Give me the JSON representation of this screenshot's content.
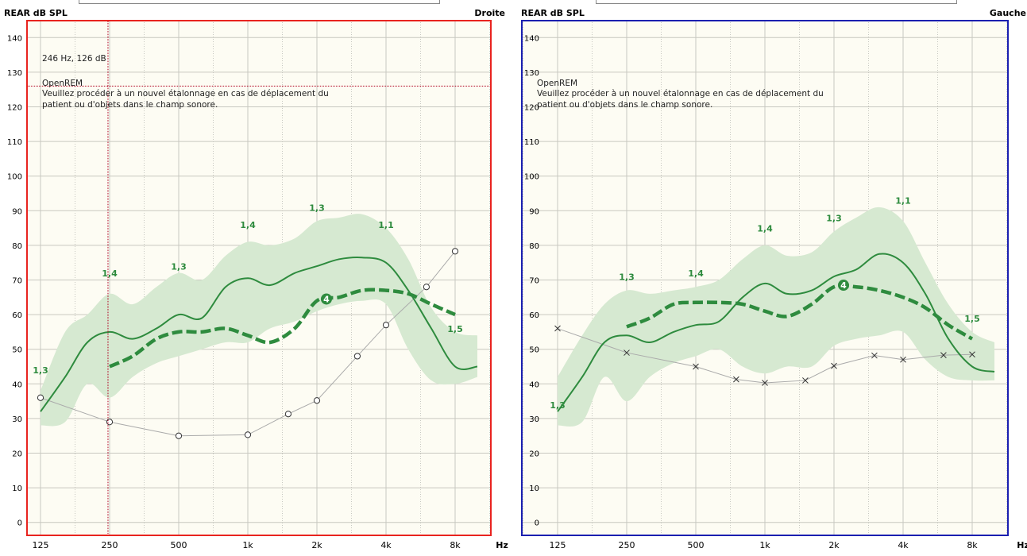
{
  "colors": {
    "right_frame": "#e8231f",
    "left_frame": "#1a1fb0",
    "plot_bg": "#fdfcf3",
    "grid": "#c8c8c0",
    "band": "#d6e9d1",
    "target": "#2e8b3e",
    "threshold": "#aaaaaa",
    "cursor": "#b00020"
  },
  "chart_data": [
    {
      "type": "line",
      "side": "Droite",
      "ylabel": "REAR dB SPL",
      "xlabel": "Hz",
      "ylim": [
        0,
        140
      ],
      "yticks": [
        0,
        10,
        20,
        30,
        40,
        50,
        60,
        70,
        80,
        90,
        100,
        110,
        120,
        130,
        140
      ],
      "xticks": [
        {
          "hz": 125,
          "label": "125"
        },
        {
          "hz": 250,
          "label": "250"
        },
        {
          "hz": 500,
          "label": "500"
        },
        {
          "hz": 1000,
          "label": "1k"
        },
        {
          "hz": 2000,
          "label": "2k"
        },
        {
          "hz": 4000,
          "label": "4k"
        },
        {
          "hz": 8000,
          "label": "8k"
        }
      ],
      "cursor_readout": "246 Hz, 126 dB",
      "cursor": {
        "hz": 246,
        "db": 126
      },
      "note_title": "OpenREM",
      "note_lines": [
        "Veuillez procéder à un nouvel étalonnage en cas de déplacement du",
        "patient ou d'objets dans le champ sonore."
      ],
      "band_upper": [
        [
          125,
          38
        ],
        [
          160,
          55
        ],
        [
          200,
          60
        ],
        [
          250,
          66
        ],
        [
          315,
          63
        ],
        [
          400,
          68
        ],
        [
          500,
          72
        ],
        [
          630,
          70
        ],
        [
          800,
          77
        ],
        [
          1000,
          81
        ],
        [
          1250,
          80
        ],
        [
          1600,
          82
        ],
        [
          2000,
          87
        ],
        [
          2500,
          88
        ],
        [
          3150,
          89
        ],
        [
          4000,
          85
        ],
        [
          5000,
          76
        ],
        [
          6300,
          62
        ],
        [
          8000,
          55
        ],
        [
          10000,
          54
        ]
      ],
      "band_lower": [
        [
          125,
          28
        ],
        [
          160,
          29
        ],
        [
          200,
          40
        ],
        [
          250,
          36
        ],
        [
          315,
          42
        ],
        [
          400,
          46
        ],
        [
          500,
          48
        ],
        [
          630,
          50
        ],
        [
          800,
          52
        ],
        [
          1000,
          52
        ],
        [
          1250,
          56
        ],
        [
          1600,
          58
        ],
        [
          2000,
          61
        ],
        [
          2500,
          63
        ],
        [
          3150,
          64
        ],
        [
          4000,
          63
        ],
        [
          5000,
          50
        ],
        [
          6300,
          41
        ],
        [
          8000,
          40
        ],
        [
          10000,
          42
        ]
      ],
      "measured": [
        [
          125,
          32
        ],
        [
          160,
          42
        ],
        [
          200,
          52
        ],
        [
          250,
          55
        ],
        [
          315,
          53
        ],
        [
          400,
          56
        ],
        [
          500,
          60
        ],
        [
          630,
          59
        ],
        [
          800,
          68
        ],
        [
          1000,
          70.5
        ],
        [
          1250,
          68.5
        ],
        [
          1600,
          72
        ],
        [
          2000,
          74
        ],
        [
          2500,
          76
        ],
        [
          3150,
          76.5
        ],
        [
          4000,
          75
        ],
        [
          5000,
          67
        ],
        [
          6300,
          56
        ],
        [
          8000,
          45
        ],
        [
          10000,
          45
        ]
      ],
      "target": [
        [
          250,
          45
        ],
        [
          315,
          48
        ],
        [
          400,
          53
        ],
        [
          500,
          55
        ],
        [
          630,
          55
        ],
        [
          800,
          56
        ],
        [
          1000,
          54
        ],
        [
          1250,
          52
        ],
        [
          1600,
          56
        ],
        [
          2000,
          64
        ],
        [
          2500,
          65
        ],
        [
          3150,
          67
        ],
        [
          4000,
          67
        ],
        [
          5000,
          66
        ],
        [
          6300,
          63
        ],
        [
          8000,
          60
        ]
      ],
      "target_marker": {
        "hz": 2200,
        "db": 64.5,
        "label": "4"
      },
      "threshold": [
        [
          125,
          36
        ],
        [
          250,
          29
        ],
        [
          500,
          25
        ],
        [
          1000,
          25.3
        ],
        [
          1500,
          31.3
        ],
        [
          2000,
          35.2
        ],
        [
          3000,
          48
        ],
        [
          4000,
          57
        ],
        [
          6000,
          68
        ],
        [
          8000,
          78.3
        ]
      ],
      "threshold_marker": "circle",
      "nal_labels": [
        {
          "hz": 125,
          "db": 43,
          "text": "1,3"
        },
        {
          "hz": 250,
          "db": 71,
          "text": "1,4"
        },
        {
          "hz": 500,
          "db": 73,
          "text": "1,3"
        },
        {
          "hz": 1000,
          "db": 85,
          "text": "1,4"
        },
        {
          "hz": 2000,
          "db": 90,
          "text": "1,3"
        },
        {
          "hz": 4000,
          "db": 85,
          "text": "1,1"
        },
        {
          "hz": 8000,
          "db": 55,
          "text": "1,5"
        }
      ]
    },
    {
      "type": "line",
      "side": "Gauche",
      "ylabel": "REAR dB SPL",
      "xlabel": "Hz",
      "ylim": [
        0,
        140
      ],
      "yticks": [
        0,
        10,
        20,
        30,
        40,
        50,
        60,
        70,
        80,
        90,
        100,
        110,
        120,
        130,
        140
      ],
      "xticks": [
        {
          "hz": 125,
          "label": "125"
        },
        {
          "hz": 250,
          "label": "250"
        },
        {
          "hz": 500,
          "label": "500"
        },
        {
          "hz": 1000,
          "label": "1k"
        },
        {
          "hz": 2000,
          "label": "2k"
        },
        {
          "hz": 4000,
          "label": "4k"
        },
        {
          "hz": 8000,
          "label": "8k"
        }
      ],
      "note_title": "OpenREM",
      "note_lines": [
        "Veuillez procéder à un nouvel étalonnage en cas de déplacement du",
        "patient ou d'objets dans le champ sonore."
      ],
      "band_upper": [
        [
          125,
          42
        ],
        [
          160,
          54
        ],
        [
          200,
          63
        ],
        [
          250,
          67
        ],
        [
          315,
          66
        ],
        [
          400,
          67
        ],
        [
          500,
          68
        ],
        [
          630,
          70
        ],
        [
          800,
          76
        ],
        [
          1000,
          80
        ],
        [
          1250,
          77
        ],
        [
          1600,
          78
        ],
        [
          2000,
          84
        ],
        [
          2500,
          88
        ],
        [
          3150,
          91
        ],
        [
          4000,
          87
        ],
        [
          5000,
          75
        ],
        [
          6300,
          63
        ],
        [
          8000,
          55
        ],
        [
          10000,
          52
        ]
      ],
      "band_lower": [
        [
          125,
          28
        ],
        [
          160,
          29
        ],
        [
          200,
          42
        ],
        [
          250,
          35
        ],
        [
          315,
          42
        ],
        [
          400,
          46
        ],
        [
          500,
          48
        ],
        [
          630,
          50
        ],
        [
          800,
          45
        ],
        [
          1000,
          43
        ],
        [
          1250,
          45
        ],
        [
          1600,
          45
        ],
        [
          2000,
          51
        ],
        [
          2500,
          53
        ],
        [
          3150,
          54
        ],
        [
          4000,
          55
        ],
        [
          5000,
          47
        ],
        [
          6300,
          42
        ],
        [
          8000,
          41
        ],
        [
          10000,
          41
        ]
      ],
      "measured": [
        [
          125,
          32
        ],
        [
          160,
          42
        ],
        [
          200,
          52
        ],
        [
          250,
          54
        ],
        [
          315,
          52
        ],
        [
          400,
          55
        ],
        [
          500,
          57
        ],
        [
          630,
          58
        ],
        [
          800,
          65
        ],
        [
          1000,
          69
        ],
        [
          1250,
          66
        ],
        [
          1600,
          67
        ],
        [
          2000,
          71
        ],
        [
          2500,
          73
        ],
        [
          3150,
          77.5
        ],
        [
          4000,
          75
        ],
        [
          5000,
          66
        ],
        [
          6300,
          53
        ],
        [
          8000,
          45
        ],
        [
          10000,
          43.5
        ]
      ],
      "target": [
        [
          250,
          56.5
        ],
        [
          315,
          59
        ],
        [
          400,
          63
        ],
        [
          500,
          63.5
        ],
        [
          630,
          63.5
        ],
        [
          800,
          63
        ],
        [
          1000,
          61
        ],
        [
          1250,
          59.5
        ],
        [
          1600,
          63
        ],
        [
          2000,
          68
        ],
        [
          2500,
          68
        ],
        [
          3150,
          67
        ],
        [
          4000,
          65
        ],
        [
          5000,
          62
        ],
        [
          6300,
          57
        ],
        [
          8000,
          53
        ]
      ],
      "target_marker": {
        "hz": 2200,
        "db": 68.5,
        "label": "4"
      },
      "threshold": [
        [
          125,
          56
        ],
        [
          250,
          49
        ],
        [
          500,
          45
        ],
        [
          750,
          41.3
        ],
        [
          1000,
          40.3
        ],
        [
          1500,
          41
        ],
        [
          2000,
          45.2
        ],
        [
          3000,
          48.2
        ],
        [
          4000,
          47
        ],
        [
          6000,
          48.3
        ],
        [
          8000,
          48.5
        ]
      ],
      "threshold_marker": "cross",
      "nal_labels": [
        {
          "hz": 125,
          "db": 33,
          "text": "1,3"
        },
        {
          "hz": 250,
          "db": 70,
          "text": "1,3"
        },
        {
          "hz": 500,
          "db": 71,
          "text": "1,4"
        },
        {
          "hz": 1000,
          "db": 84,
          "text": "1,4"
        },
        {
          "hz": 2000,
          "db": 87,
          "text": "1,3"
        },
        {
          "hz": 4000,
          "db": 92,
          "text": "1,1"
        },
        {
          "hz": 8000,
          "db": 58,
          "text": "1,5"
        }
      ]
    }
  ]
}
